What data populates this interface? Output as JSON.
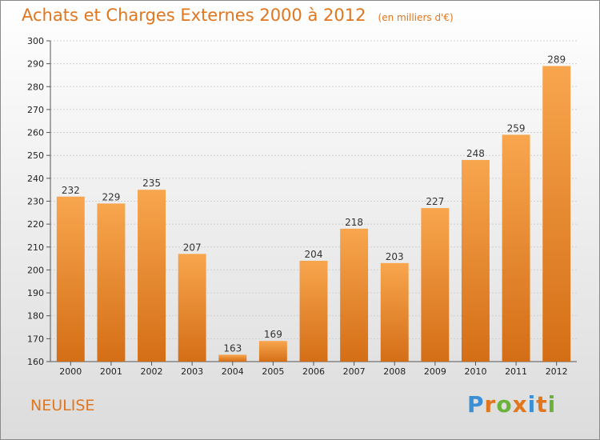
{
  "title": "Achats et Charges Externes 2000 à 2012",
  "unit": "(en milliers d'€)",
  "commune": "NEULISE",
  "logo": {
    "text": "Proxiti",
    "letters": [
      {
        "ch": "P",
        "color": "#3a8fd6"
      },
      {
        "ch": "r",
        "color": "#e0761e"
      },
      {
        "ch": "o",
        "color": "#6bb23a"
      },
      {
        "ch": "x",
        "color": "#e0761e"
      },
      {
        "ch": "i",
        "color": "#3a8fd6"
      },
      {
        "ch": "t",
        "color": "#e0761e"
      },
      {
        "ch": "i",
        "color": "#6bb23a"
      }
    ]
  },
  "colors": {
    "accent": "#e0761e",
    "bar_light": "#f8a64e",
    "bar_dark": "#d46e16"
  },
  "chart_data": {
    "type": "bar",
    "categories": [
      "2000",
      "2001",
      "2002",
      "2003",
      "2004",
      "2005",
      "2006",
      "2007",
      "2008",
      "2009",
      "2010",
      "2011",
      "2012"
    ],
    "values": [
      232,
      229,
      235,
      207,
      163,
      169,
      204,
      218,
      203,
      227,
      248,
      259,
      289
    ],
    "ylim": [
      160,
      300
    ],
    "yticks": [
      160,
      170,
      180,
      190,
      200,
      210,
      220,
      230,
      240,
      250,
      260,
      270,
      280,
      290,
      300
    ],
    "grid": true,
    "data_labels": true
  }
}
